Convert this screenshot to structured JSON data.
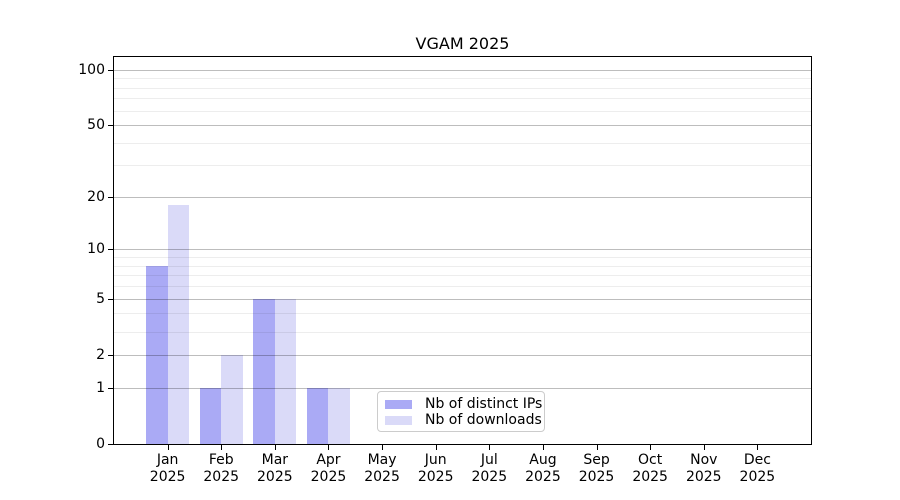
{
  "chart_data": {
    "type": "bar",
    "title": "VGAM 2025",
    "categories": [
      "Jan 2025",
      "Feb 2025",
      "Mar 2025",
      "Apr 2025",
      "May 2025",
      "Jun 2025",
      "Jul 2025",
      "Aug 2025",
      "Sep 2025",
      "Oct 2025",
      "Nov 2025",
      "Dec 2025"
    ],
    "series": [
      {
        "name": "Nb of distinct IPs",
        "color": "#aaaaf5",
        "values": [
          8,
          1,
          5,
          1,
          0,
          0,
          0,
          0,
          0,
          0,
          0,
          0
        ]
      },
      {
        "name": "Nb of downloads",
        "color": "#dadaf8",
        "values": [
          18,
          2,
          5,
          1,
          0,
          0,
          0,
          0,
          0,
          0,
          0,
          0
        ]
      }
    ],
    "xlabel": "",
    "ylabel": "",
    "yscale": "log1p",
    "ylim": [
      0,
      117
    ],
    "yticks": [
      0,
      1,
      2,
      5,
      10,
      20,
      50,
      100
    ],
    "yticks_minor": [
      3,
      4,
      6,
      7,
      8,
      9,
      30,
      40,
      60,
      70,
      80,
      90
    ],
    "grid": "horizontal",
    "legend_position": "inside-bottom-center"
  },
  "colors": {
    "background": "#ffffff",
    "bar_distinct_ips": "#aaaaf5",
    "bar_downloads": "#dadaf8",
    "grid_major": "#c3c3c3",
    "grid_minor": "#ededed",
    "axis": "#000000",
    "legend_border": "#cccccc",
    "text": "#000000"
  }
}
